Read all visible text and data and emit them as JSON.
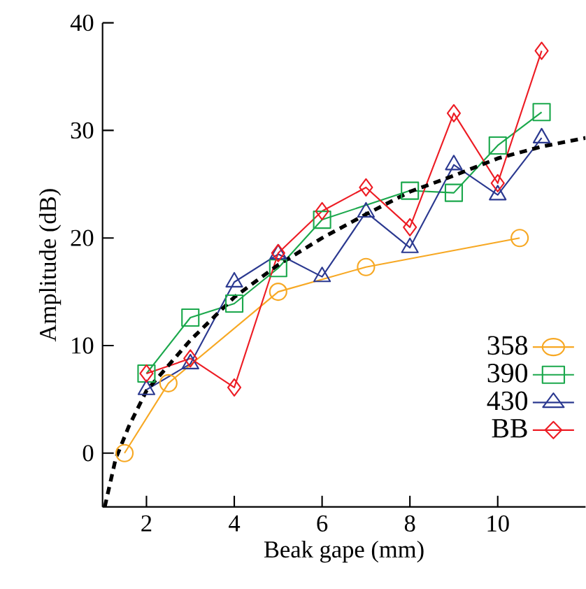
{
  "chart_data": {
    "type": "line",
    "xlabel": "Beak gape (mm)",
    "ylabel": "Amplitude (dB)",
    "xlim": [
      1,
      12
    ],
    "ylim": [
      -5,
      40
    ],
    "xticks": [
      2,
      4,
      6,
      8,
      10
    ],
    "yticks": [
      0,
      10,
      20,
      30,
      40
    ],
    "legend": "bottom right",
    "grid": false,
    "series": [
      {
        "name": "358",
        "color": "#f7a823",
        "marker": "circle",
        "x": [
          1.5,
          2.5,
          5,
          7,
          10.5
        ],
        "values": [
          0,
          6.5,
          15,
          17.3,
          20
        ]
      },
      {
        "name": "390",
        "color": "#1ba84c",
        "marker": "square",
        "x": [
          2,
          3,
          4,
          5,
          6,
          8,
          9,
          10,
          11
        ],
        "values": [
          7.4,
          12.6,
          13.9,
          17.2,
          21.7,
          24.4,
          24.2,
          28.6,
          31.7
        ]
      },
      {
        "name": "430",
        "color": "#2b3990",
        "marker": "triangle",
        "x": [
          2,
          3,
          4,
          5,
          6,
          7,
          8,
          9,
          10,
          11
        ],
        "values": [
          5.9,
          8.3,
          15.9,
          18.5,
          16.4,
          22.4,
          19.1,
          26.8,
          24,
          29.3
        ]
      },
      {
        "name": "BB",
        "color": "#ed1c24",
        "marker": "diamond",
        "x": [
          2,
          3,
          4,
          5,
          6,
          7,
          8,
          9,
          10,
          11
        ],
        "values": [
          7.4,
          8.8,
          6.1,
          18.6,
          22.5,
          24.7,
          21,
          31.6,
          25.1,
          37.4
        ]
      },
      {
        "color": "#000000",
        "marker": "none",
        "line_style": "dashed",
        "x": [
          1.05,
          1.3,
          1.6,
          2,
          3,
          4,
          5,
          6,
          7,
          8,
          9,
          10,
          11,
          12
        ],
        "values": [
          -5,
          -0.5,
          2.5,
          5.8,
          10.5,
          14.5,
          17.5,
          20,
          22.2,
          24.3,
          25.8,
          27.4,
          28.5,
          29.3
        ]
      }
    ]
  }
}
